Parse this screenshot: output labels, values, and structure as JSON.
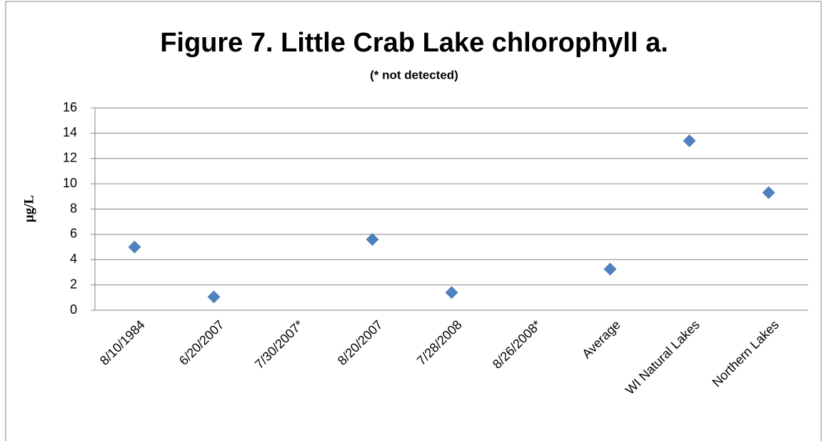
{
  "chart_data": {
    "type": "scatter",
    "title": "Figure 7. Little Crab Lake chlorophyll a.",
    "subtitle": "(* not detected)",
    "y_label": "µg/L",
    "categories": [
      "8/10/1984",
      "6/20/2007",
      "7/30/2007*",
      "8/20/2007",
      "7/28/2008",
      "8/26/2008*",
      "Average",
      "WI Natural Lakes",
      "Northern Lakes"
    ],
    "values": [
      5.0,
      1.05,
      null,
      5.6,
      1.4,
      null,
      3.25,
      13.4,
      9.3
    ],
    "color": "#4f81bd",
    "ylim": [
      0,
      16
    ],
    "yticks": [
      0,
      2,
      4,
      6,
      8,
      10,
      12,
      14,
      16
    ],
    "grid": true
  }
}
